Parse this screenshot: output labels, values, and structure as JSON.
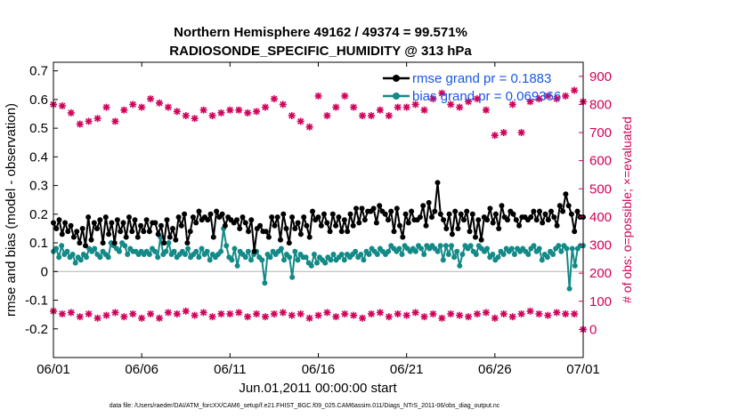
{
  "chart_data": {
    "type": "line",
    "title": "Northern Hemisphere 49162 / 49374 = 99.571%",
    "subtitle": "RADIOSONDE_SPECIFIC_HUMIDITY @ 313 hPa",
    "xlabel": "Jun.01,2011 00:00:00 start",
    "ylabel": "rmse and bias (model - observation)",
    "y2label": "# of obs: o=possible; ×=evaluated",
    "footer": "data file: /Users/raeder/DAI/ATM_forcXX/CAM6_setup/f.e21.FHIST_BGC.f09_025.CAM6assim.011/Diags_NTrS_2011-06/obs_diag_output.nc",
    "xlim": [
      0,
      30
    ],
    "ylim": [
      -0.3,
      0.73
    ],
    "y2lim": [
      -100,
      950
    ],
    "x_tick_labels": [
      "06/01",
      "06/06",
      "06/11",
      "06/16",
      "06/21",
      "06/26",
      "07/01"
    ],
    "y_tick_labels": [
      "-0.2",
      "-0.1",
      "0",
      "0.1",
      "0.2",
      "0.3",
      "0.4",
      "0.5",
      "0.6",
      "0.7"
    ],
    "y2_tick_labels": [
      "0",
      "100",
      "200",
      "300",
      "400",
      "500",
      "600",
      "700",
      "800",
      "900"
    ],
    "colors": {
      "rmse": "#000000",
      "bias": "#138a87",
      "obs": "#d1005a",
      "legend_text": "#1a56e8",
      "zero_line": "#bbbbbb"
    },
    "legend": [
      {
        "name": "rmse",
        "label": "rmse grand pr = 0.1883"
      },
      {
        "name": "bias",
        "label": "bias grand pr = 0.069366"
      }
    ],
    "series": [
      {
        "name": "rmse",
        "values": [
          0.17,
          0.15,
          0.18,
          0.13,
          0.17,
          0.14,
          0.16,
          0.12,
          0.14,
          0.1,
          0.15,
          0.09,
          0.19,
          0.11,
          0.17,
          0.15,
          0.18,
          0.1,
          0.19,
          0.13,
          0.17,
          0.1,
          0.18,
          0.14,
          0.17,
          0.12,
          0.19,
          0.14,
          0.18,
          0.12,
          0.16,
          0.14,
          0.18,
          0.14,
          0.17,
          0.17,
          0.13,
          0.16,
          0.1,
          0.18,
          0.12,
          0.15,
          0.11,
          0.19,
          0.16,
          0.2,
          0.1,
          0.14,
          0.19,
          0.17,
          0.21,
          0.18,
          0.19,
          0.18,
          0.2,
          0.12,
          0.21,
          0.19,
          0.2,
          0.16,
          0.19,
          0.18,
          0.17,
          0.18,
          0.15,
          0.19,
          0.17,
          0.14,
          0.18,
          0.07,
          0.15,
          0.16,
          0.14,
          0.14,
          0.12,
          0.19,
          0.16,
          0.19,
          0.11,
          0.2,
          0.15,
          0.1,
          0.19,
          0.15,
          0.17,
          0.13,
          0.19,
          0.16,
          0.12,
          0.21,
          0.18,
          0.19,
          0.16,
          0.2,
          0.17,
          0.14,
          0.2,
          0.16,
          0.19,
          0.14,
          0.18,
          0.14,
          0.2,
          0.16,
          0.22,
          0.17,
          0.22,
          0.18,
          0.21,
          0.21,
          0.22,
          0.17,
          0.23,
          0.21,
          0.2,
          0.18,
          0.21,
          0.14,
          0.22,
          0.16,
          0.12,
          0.2,
          0.17,
          0.21,
          0.18,
          0.18,
          0.19,
          0.23,
          0.16,
          0.24,
          0.19,
          0.21,
          0.31,
          0.2,
          0.18,
          0.15,
          0.2,
          0.13,
          0.21,
          0.15,
          0.2,
          0.18,
          0.21,
          0.14,
          0.2,
          0.12,
          0.18,
          0.11,
          0.19,
          0.18,
          0.22,
          0.17,
          0.2,
          0.15,
          0.23,
          0.19,
          0.18,
          0.21,
          0.2,
          0.18,
          0.16,
          0.19,
          0.19,
          0.18,
          0.19,
          0.21,
          0.18,
          0.21,
          0.17,
          0.2,
          0.18,
          0.21,
          0.19,
          0.16,
          0.23,
          0.21,
          0.27,
          0.23,
          0.2,
          0.14,
          0.21,
          0.19,
          0.19
        ]
      },
      {
        "name": "bias",
        "values": [
          0.07,
          0.08,
          0.05,
          0.09,
          0.06,
          0.07,
          0.05,
          0.06,
          0.03,
          0.05,
          0.04,
          0.06,
          0.05,
          0.08,
          0.07,
          0.08,
          0.06,
          0.05,
          0.07,
          0.06,
          0.05,
          0.1,
          0.09,
          0.08,
          0.07,
          0.1,
          0.09,
          0.06,
          0.08,
          0.07,
          0.07,
          0.06,
          0.07,
          0.06,
          0.07,
          0.06,
          0.08,
          0.07,
          0.05,
          0.12,
          0.06,
          0.07,
          0.1,
          0.06,
          0.07,
          0.05,
          0.06,
          0.07,
          0.06,
          0.08,
          0.05,
          0.06,
          0.07,
          0.05,
          0.08,
          0.06,
          0.07,
          0.04,
          0.06,
          0.05,
          0.06,
          0.07,
          0.15,
          0.09,
          0.05,
          0.04,
          0.08,
          0.02,
          0.07,
          0.06,
          0.05,
          0.07,
          0.04,
          0.06,
          0.07,
          0.05,
          0.04,
          -0.04,
          0.06,
          0.05,
          0.07,
          0.06,
          0.07,
          0.08,
          0.04,
          0.06,
          0.05,
          -0.02,
          0.07,
          0.04,
          0.06,
          0.05,
          0.05,
          0.03,
          0.02,
          0.06,
          0.03,
          0.05,
          0.04,
          0.03,
          0.05,
          0.04,
          0.06,
          0.04,
          0.05,
          0.06,
          0.04,
          0.06,
          0.05,
          0.06,
          0.07,
          0.05,
          0.06,
          0.04,
          0.07,
          0.06,
          0.08,
          0.07,
          0.06,
          0.08,
          0.07,
          0.06,
          0.07,
          0.09,
          0.08,
          0.07,
          0.08,
          0.06,
          0.09,
          0.08,
          0.07,
          0.08,
          0.07,
          0.09,
          0.08,
          0.06,
          0.09,
          0.08,
          0.09,
          0.08,
          0.07,
          0.09,
          0.04,
          0.09,
          0.06,
          0.09,
          0.05,
          0.07,
          0.02,
          0.06,
          0.09,
          0.08,
          0.09,
          0.07,
          0.06,
          0.09,
          0.08,
          0.07,
          0.08,
          0.05,
          0.06,
          0.04,
          0.05,
          0.07,
          0.06,
          0.08,
          0.07,
          0.08,
          0.06,
          0.08,
          0.07,
          0.08,
          0.07,
          0.06,
          0.08,
          0.09,
          0.07,
          0.08,
          0.04,
          0.06,
          0.05,
          0.07,
          0.06,
          0.08,
          0.09,
          0.07,
          0.09,
          0.08,
          -0.06,
          0.08,
          0.02,
          0.08,
          0.09,
          0.09
        ]
      },
      {
        "name": "obs_possible",
        "axis": "right",
        "x": [
          0.0,
          0.5,
          1.0,
          1.5,
          2.0,
          2.5,
          3.0,
          3.5,
          4.0,
          4.5,
          5.0,
          5.5,
          6.0,
          6.5,
          7.0,
          7.5,
          8.0,
          8.5,
          9.0,
          9.5,
          10.0,
          10.5,
          11.0,
          11.5,
          12.0,
          12.5,
          13.0,
          13.5,
          14.0,
          14.5,
          15.0,
          15.5,
          16.0,
          16.5,
          17.0,
          17.5,
          18.0,
          18.5,
          19.0,
          19.5,
          20.0,
          20.5,
          21.0,
          21.5,
          22.0,
          22.5,
          23.0,
          23.5,
          24.0,
          24.5,
          25.0,
          25.5,
          26.0,
          26.5,
          27.0,
          27.5,
          28.0,
          28.5,
          29.0,
          29.5,
          30.0
        ],
        "values": [
          65,
          55,
          60,
          45,
          55,
          40,
          50,
          60,
          45,
          55,
          40,
          55,
          40,
          60,
          55,
          65,
          50,
          60,
          45,
          55,
          55,
          60,
          45,
          55,
          45,
          55,
          60,
          50,
          55,
          40,
          50,
          60,
          45,
          55,
          50,
          40,
          55,
          60,
          45,
          55,
          50,
          60,
          45,
          55,
          40,
          55,
          50,
          45,
          55,
          60,
          40,
          55,
          45,
          55,
          65,
          55,
          50,
          60,
          55,
          55,
          0
        ]
      },
      {
        "name": "obs_evaluated",
        "axis": "right",
        "x": [
          0.0,
          0.5,
          1.0,
          1.5,
          2.0,
          2.5,
          3.0,
          3.5,
          4.0,
          4.5,
          5.0,
          5.5,
          6.0,
          6.5,
          7.0,
          7.5,
          8.0,
          8.5,
          9.0,
          9.5,
          10.0,
          10.5,
          11.0,
          11.5,
          12.0,
          12.5,
          13.0,
          13.5,
          14.0,
          14.5,
          15.0,
          15.5,
          16.0,
          16.5,
          17.0,
          17.5,
          18.0,
          18.5,
          19.0,
          19.5,
          20.0,
          20.5,
          21.0,
          21.5,
          22.0,
          22.5,
          23.0,
          23.5,
          24.0,
          24.5,
          25.0,
          25.5,
          26.0,
          26.5,
          27.0,
          27.5,
          28.0,
          28.5,
          29.0,
          29.5,
          30.0
        ],
        "values": [
          800,
          795,
          770,
          730,
          740,
          750,
          790,
          740,
          780,
          800,
          790,
          820,
          805,
          790,
          775,
          760,
          750,
          780,
          760,
          770,
          780,
          780,
          770,
          775,
          790,
          820,
          800,
          760,
          740,
          720,
          830,
          760,
          790,
          830,
          790,
          760,
          760,
          780,
          760,
          790,
          790,
          800,
          780,
          820,
          840,
          800,
          790,
          810,
          820,
          780,
          690,
          700,
          800,
          700,
          810,
          820,
          830,
          820,
          830,
          850,
          810
        ]
      }
    ]
  }
}
